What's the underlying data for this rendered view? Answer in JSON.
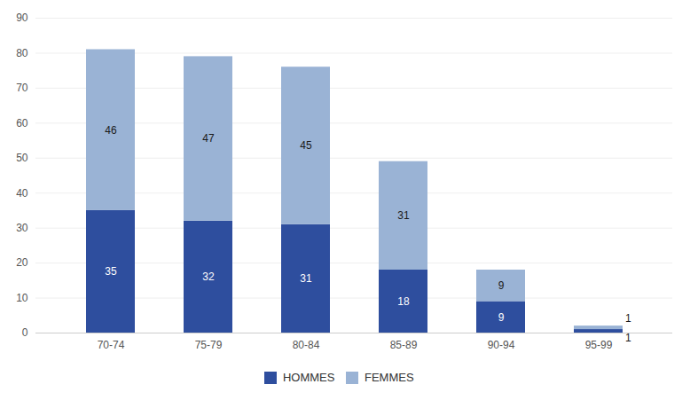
{
  "chart_data": {
    "type": "bar",
    "categories": [
      "70-74",
      "75-79",
      "80-84",
      "85-89",
      "90-94",
      "95-99"
    ],
    "series": [
      {
        "name": "HOMMES",
        "color": "#2e4e9e",
        "values": [
          35,
          32,
          31,
          18,
          9,
          1
        ]
      },
      {
        "name": "FEMMES",
        "color": "#9ab3d5",
        "values": [
          46,
          47,
          45,
          31,
          9,
          1
        ]
      }
    ],
    "stacked": true,
    "data_labels": true,
    "ylim": [
      0,
      90
    ],
    "yticks": [
      0,
      10,
      20,
      30,
      40,
      50,
      60,
      70,
      80,
      90
    ],
    "grid": true,
    "legend": "bottom"
  }
}
